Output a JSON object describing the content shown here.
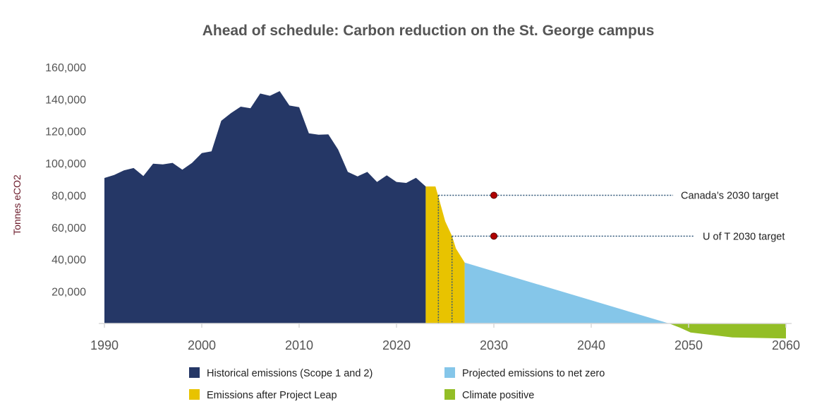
{
  "chart_data": {
    "type": "area",
    "title": "Ahead of schedule: Carbon reduction on the St. George campus",
    "ylabel": "Tonnes eCO2",
    "xlabel": "",
    "xlim": [
      1990,
      2060
    ],
    "ylim": [
      -10000,
      160000
    ],
    "x_ticks": [
      "1990",
      "2000",
      "2010",
      "2020",
      "2030",
      "2040",
      "2050",
      "2060"
    ],
    "y_ticks": [
      "20,000",
      "40,000",
      "60,000",
      "80,000",
      "100,000",
      "120,000",
      "140,000",
      "160,000"
    ],
    "y_tick_values": [
      20000,
      40000,
      60000,
      80000,
      100000,
      120000,
      140000,
      160000
    ],
    "grid": false,
    "legend_placement": "bottom",
    "series": [
      {
        "name": "Historical emissions (Scope 1 and 2)",
        "color": "#253766",
        "points": [
          [
            1990,
            90800
          ],
          [
            1991,
            92700
          ],
          [
            1992,
            95500
          ],
          [
            1993,
            97000
          ],
          [
            1994,
            92000
          ],
          [
            1995,
            99700
          ],
          [
            1996,
            99300
          ],
          [
            1997,
            100200
          ],
          [
            1998,
            96000
          ],
          [
            1999,
            100200
          ],
          [
            2000,
            106300
          ],
          [
            2001,
            107400
          ],
          [
            2002,
            126500
          ],
          [
            2003,
            131300
          ],
          [
            2004,
            135300
          ],
          [
            2005,
            134300
          ],
          [
            2006,
            143500
          ],
          [
            2007,
            142100
          ],
          [
            2008,
            145000
          ],
          [
            2009,
            136000
          ],
          [
            2010,
            135000
          ],
          [
            2011,
            118700
          ],
          [
            2012,
            117800
          ],
          [
            2013,
            118000
          ],
          [
            2014,
            108600
          ],
          [
            2015,
            94600
          ],
          [
            2016,
            91800
          ],
          [
            2017,
            94600
          ],
          [
            2018,
            88300
          ],
          [
            2019,
            92400
          ],
          [
            2020,
            88300
          ],
          [
            2021,
            87700
          ],
          [
            2022,
            90900
          ],
          [
            2023,
            85500
          ]
        ]
      },
      {
        "name": "Emissions after Project Leap",
        "color": "#e8c300",
        "points": [
          [
            2023,
            85500
          ],
          [
            2024,
            85500
          ],
          [
            2024.3,
            79200
          ],
          [
            2025,
            63800
          ],
          [
            2025.7,
            54500
          ],
          [
            2026.1,
            46800
          ],
          [
            2027,
            38000
          ]
        ]
      },
      {
        "name": "Projected emissions to net zero",
        "color": "#85c6e9",
        "points": [
          [
            2027,
            38000
          ],
          [
            2048,
            0
          ]
        ]
      },
      {
        "name": "Climate positive",
        "color": "#93be26",
        "points": [
          [
            2048,
            0
          ],
          [
            2049.1,
            -2600
          ],
          [
            2050.2,
            -5600
          ],
          [
            2054.5,
            -8700
          ],
          [
            2060,
            -9400
          ]
        ]
      }
    ],
    "annotations": [
      {
        "label": "Canada’s 2030 target",
        "year": 2030,
        "value": 80000,
        "from_year": 2024.3
      },
      {
        "label": "U of T 2030 target",
        "year": 2030,
        "value": 54500,
        "from_year": 2025.7
      }
    ],
    "marker_color": "#b00000"
  }
}
